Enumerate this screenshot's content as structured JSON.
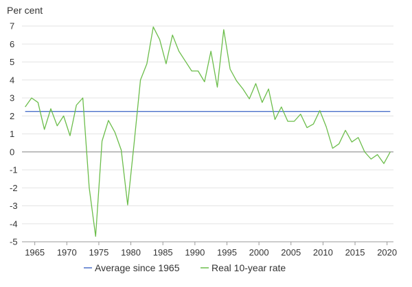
{
  "chart_data": {
    "type": "line",
    "ylabel": "Per cent",
    "ylim": [
      -5,
      7
    ],
    "yticks": [
      7,
      6,
      5,
      4,
      3,
      2,
      1,
      0,
      -1,
      -2,
      -3,
      -4,
      -5
    ],
    "xlim": [
      1963,
      2021
    ],
    "xticks": [
      1965,
      1970,
      1975,
      1980,
      1985,
      1990,
      1995,
      2000,
      2005,
      2010,
      2015,
      2020
    ],
    "grid": true,
    "legend": "bottom",
    "series": [
      {
        "name": "Average since 1965",
        "color": "#4a6fc9",
        "x": [
          1963.5,
          2020.5
        ],
        "values": [
          2.25,
          2.25
        ]
      },
      {
        "name": "Real 10-year rate",
        "color": "#6bbd4a",
        "x": [
          1963.5,
          1964.5,
          1965.5,
          1966.5,
          1967.5,
          1968.5,
          1969.5,
          1970.5,
          1971.5,
          1972.5,
          1973.5,
          1974.5,
          1975.5,
          1976.5,
          1977.5,
          1978.5,
          1979.5,
          1980.5,
          1981.5,
          1982.5,
          1983.5,
          1984.5,
          1985.5,
          1986.5,
          1987.5,
          1988.5,
          1989.5,
          1990.5,
          1991.5,
          1992.5,
          1993.5,
          1994.5,
          1995.5,
          1996.5,
          1997.5,
          1998.5,
          1999.5,
          2000.5,
          2001.5,
          2002.5,
          2003.5,
          2004.5,
          2005.5,
          2006.5,
          2007.5,
          2008.5,
          2009.5,
          2010.5,
          2011.5,
          2012.5,
          2013.5,
          2014.5,
          2015.5,
          2016.5,
          2017.5,
          2018.5,
          2019.5,
          2020.5
        ],
        "values": [
          2.5,
          3.0,
          2.75,
          1.25,
          2.4,
          1.45,
          2.0,
          0.9,
          2.6,
          3.0,
          -2.0,
          -4.7,
          0.6,
          1.75,
          1.1,
          0.1,
          -2.95,
          0.45,
          4.0,
          4.9,
          6.95,
          6.25,
          4.9,
          6.5,
          5.6,
          5.05,
          4.5,
          4.5,
          3.9,
          5.6,
          3.6,
          6.8,
          4.6,
          3.95,
          3.5,
          2.95,
          3.8,
          2.75,
          3.5,
          1.8,
          2.5,
          1.7,
          1.7,
          2.1,
          1.35,
          1.55,
          2.3,
          1.4,
          0.2,
          0.45,
          1.2,
          0.55,
          0.8,
          0.0,
          -0.4,
          -0.15,
          -0.65,
          0.0
        ]
      }
    ]
  }
}
